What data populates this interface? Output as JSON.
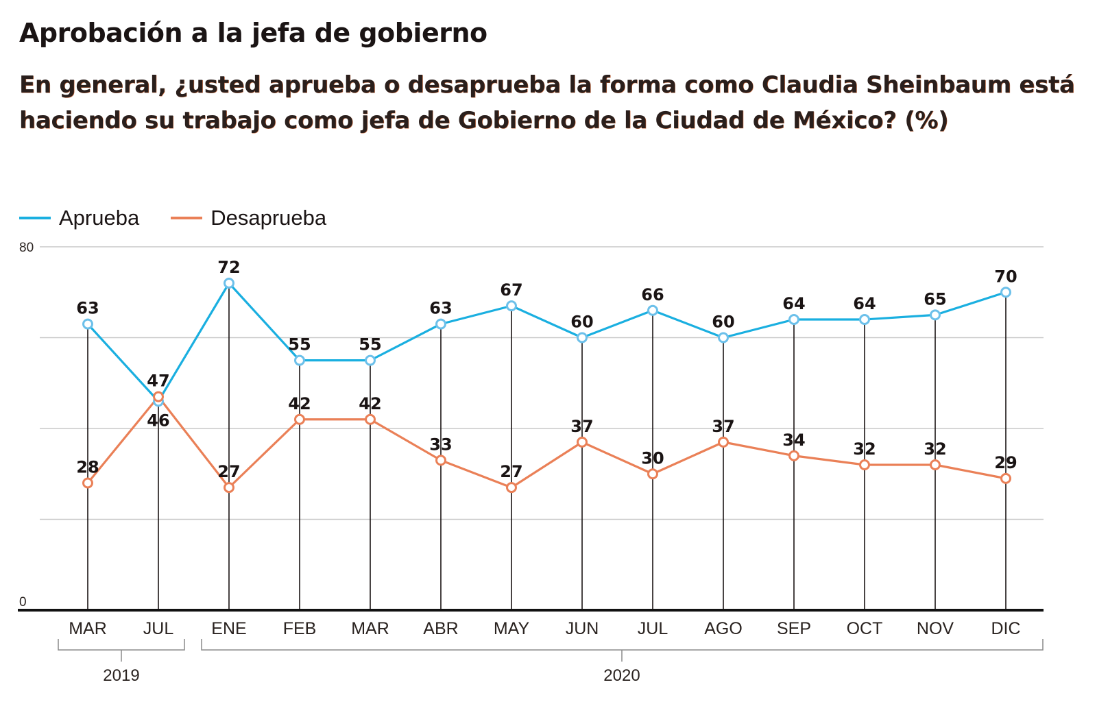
{
  "chart_data": {
    "type": "line",
    "title": "Aprobación a la jefa de gobierno",
    "subtitle": "En general, ¿usted aprueba o desaprueba la forma como Claudia Sheinbaum está haciendo su trabajo como jefa de Gobierno de la Ciudad de México? (%)",
    "xlabel": "",
    "ylabel": "",
    "ylim": [
      0,
      80
    ],
    "y_ticks_labeled": [
      "0",
      "80"
    ],
    "y_gridlines": [
      20,
      40,
      60,
      80
    ],
    "grid": true,
    "legend_position": "top-left",
    "categories": [
      "MAR",
      "JUL",
      "ENE",
      "FEB",
      "MAR",
      "ABR",
      "MAY",
      "JUN",
      "JUL",
      "AGO",
      "SEP",
      "OCT",
      "NOV",
      "DIC"
    ],
    "year_groups": [
      {
        "label": "2019",
        "from": 0,
        "to": 1
      },
      {
        "label": "2020",
        "from": 2,
        "to": 13
      }
    ],
    "series": [
      {
        "name": "Aprueba",
        "color": "#1aafe0",
        "marker_stroke": "#6cc0ea",
        "values": [
          63,
          46,
          72,
          55,
          55,
          63,
          67,
          60,
          66,
          60,
          64,
          64,
          65,
          70
        ],
        "label_position": [
          "above",
          "below",
          "above",
          "above",
          "above",
          "above",
          "above",
          "above",
          "above",
          "above",
          "above",
          "above",
          "above",
          "above"
        ]
      },
      {
        "name": "Desaprueba",
        "color": "#ea8057",
        "marker_stroke": "#ea8057",
        "values": [
          28,
          47,
          27,
          42,
          42,
          33,
          27,
          37,
          30,
          37,
          34,
          32,
          32,
          29
        ],
        "label_position": [
          "above",
          "above",
          "above",
          "above",
          "above",
          "above",
          "above",
          "above",
          "above",
          "above",
          "above",
          "above",
          "above",
          "above"
        ]
      }
    ]
  }
}
